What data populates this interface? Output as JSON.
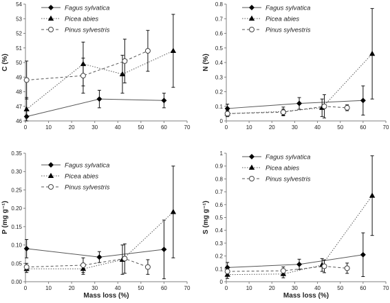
{
  "colors": {
    "axis": "#7f7f7f",
    "line": "#555555",
    "marker": "#000000"
  },
  "marker_icons": {
    "Fagus sylvatica": "diamond-filled",
    "Picea abies": "triangle-filled",
    "Pinus sylvestris": "circle-open"
  },
  "chart_data": [
    {
      "type": "line",
      "ylabel": "C (%)",
      "xlabel": "",
      "xlim": [
        0,
        70
      ],
      "xticks": [
        0,
        10,
        20,
        30,
        40,
        50,
        60,
        70
      ],
      "ylim": [
        46,
        54
      ],
      "yticks": [
        46,
        47,
        48,
        49,
        50,
        51,
        52,
        53,
        54
      ],
      "ytick_labels": [
        "46",
        "47",
        "48",
        "49",
        "50",
        "51",
        "52",
        "53",
        "54"
      ],
      "legend_position": "top-left",
      "series": [
        {
          "name": "Fagus sylvatica",
          "style": "solid",
          "marker": "diamond",
          "x": [
            0.5,
            32,
            60
          ],
          "y": [
            46.3,
            47.5,
            47.4
          ],
          "err": [
            0.4,
            0.6,
            0.5
          ]
        },
        {
          "name": "Picea abies",
          "style": "dotted",
          "marker": "triangle",
          "x": [
            0.5,
            25,
            42,
            64
          ],
          "y": [
            46.8,
            49.9,
            49.2,
            50.8
          ],
          "err": [
            0.8,
            1.5,
            1.3,
            2.5
          ]
        },
        {
          "name": "Pinus sylvestris",
          "style": "dashed",
          "marker": "circle",
          "x": [
            0.5,
            25,
            43,
            53
          ],
          "y": [
            48.8,
            49.1,
            50.1,
            50.8
          ],
          "err": [
            1.3,
            1.2,
            1.5,
            1.4
          ]
        }
      ]
    },
    {
      "type": "line",
      "ylabel": "N (%)",
      "xlabel": "",
      "xlim": [
        0,
        70
      ],
      "xticks": [
        0,
        10,
        20,
        30,
        40,
        50,
        60,
        70
      ],
      "ylim": [
        0,
        0.8
      ],
      "yticks": [
        0,
        0.1,
        0.2,
        0.3,
        0.4,
        0.5,
        0.6,
        0.7,
        0.8
      ],
      "ytick_labels": [
        "0",
        "0.1",
        "0.2",
        "0.3",
        "0.4",
        "0.5",
        "0.6",
        "0.7",
        "0.8"
      ],
      "legend_position": "top-left",
      "series": [
        {
          "name": "Fagus sylvatica",
          "style": "solid",
          "marker": "diamond",
          "x": [
            0.5,
            32,
            60
          ],
          "y": [
            0.085,
            0.12,
            0.14
          ],
          "err": [
            0.03,
            0.04,
            0.1
          ]
        },
        {
          "name": "Picea abies",
          "style": "dotted",
          "marker": "triangle",
          "x": [
            0.5,
            25,
            42,
            64
          ],
          "y": [
            0.05,
            0.065,
            0.09,
            0.46
          ],
          "err": [
            0.02,
            0.03,
            0.06,
            0.31
          ]
        },
        {
          "name": "Pinus sylvestris",
          "style": "dashed",
          "marker": "circle",
          "x": [
            0.5,
            25,
            43,
            53
          ],
          "y": [
            0.05,
            0.06,
            0.1,
            0.09
          ],
          "err": [
            0.02,
            0.02,
            0.08,
            0.02
          ]
        }
      ]
    },
    {
      "type": "line",
      "ylabel": "P (mg g⁻¹)",
      "xlabel": "Mass loss (%)",
      "xlim": [
        0,
        70
      ],
      "xticks": [
        0,
        10,
        20,
        30,
        40,
        50,
        60,
        70
      ],
      "ylim": [
        0,
        0.35
      ],
      "yticks": [
        0,
        0.05,
        0.1,
        0.15,
        0.2,
        0.25,
        0.3,
        0.35
      ],
      "ytick_labels": [
        "0.00",
        "0.05",
        "0.10",
        "0.15",
        "0.20",
        "0.25",
        "0.30",
        "0.35"
      ],
      "legend_position": "top-left",
      "series": [
        {
          "name": "Fagus sylvatica",
          "style": "solid",
          "marker": "diamond",
          "x": [
            0.5,
            32,
            60
          ],
          "y": [
            0.09,
            0.067,
            0.088
          ],
          "err": [
            0.025,
            0.015,
            0.08
          ]
        },
        {
          "name": "Picea abies",
          "style": "dotted",
          "marker": "triangle",
          "x": [
            0.5,
            25,
            42,
            64
          ],
          "y": [
            0.035,
            0.035,
            0.06,
            0.19
          ],
          "err": [
            0.01,
            0.015,
            0.04,
            0.125
          ]
        },
        {
          "name": "Pinus sylvestris",
          "style": "dashed",
          "marker": "circle",
          "x": [
            0.5,
            25,
            43,
            53
          ],
          "y": [
            0.04,
            0.045,
            0.063,
            0.04
          ],
          "err": [
            0.01,
            0.02,
            0.04,
            0.02
          ]
        }
      ]
    },
    {
      "type": "line",
      "ylabel": "S (mg g⁻¹)",
      "xlabel": "Mass loss (%)",
      "xlim": [
        0,
        70
      ],
      "xticks": [
        0,
        10,
        20,
        30,
        40,
        50,
        60,
        70
      ],
      "ylim": [
        0,
        1
      ],
      "yticks": [
        0,
        0.1,
        0.2,
        0.3,
        0.4,
        0.5,
        0.6,
        0.7,
        0.8,
        0.9,
        1
      ],
      "ytick_labels": [
        "0",
        "0.1",
        "0.2",
        "0.3",
        "0.4",
        "0.5",
        "0.6",
        "0.7",
        "0.8",
        "0.9",
        "1"
      ],
      "legend_position": "top-left",
      "series": [
        {
          "name": "Fagus sylvatica",
          "style": "solid",
          "marker": "diamond",
          "x": [
            0.5,
            32,
            60
          ],
          "y": [
            0.11,
            0.135,
            0.21
          ],
          "err": [
            0.04,
            0.04,
            0.17
          ]
        },
        {
          "name": "Picea abies",
          "style": "dotted",
          "marker": "triangle",
          "x": [
            0.5,
            25,
            42,
            64
          ],
          "y": [
            0.055,
            0.06,
            0.13,
            0.67
          ],
          "err": [
            0.03,
            0.03,
            0.05,
            0.31
          ]
        },
        {
          "name": "Pinus sylvestris",
          "style": "dashed",
          "marker": "circle",
          "x": [
            0.5,
            25,
            43,
            53
          ],
          "y": [
            0.08,
            0.085,
            0.12,
            0.105
          ],
          "err": [
            0.03,
            0.03,
            0.05,
            0.04
          ]
        }
      ]
    }
  ]
}
